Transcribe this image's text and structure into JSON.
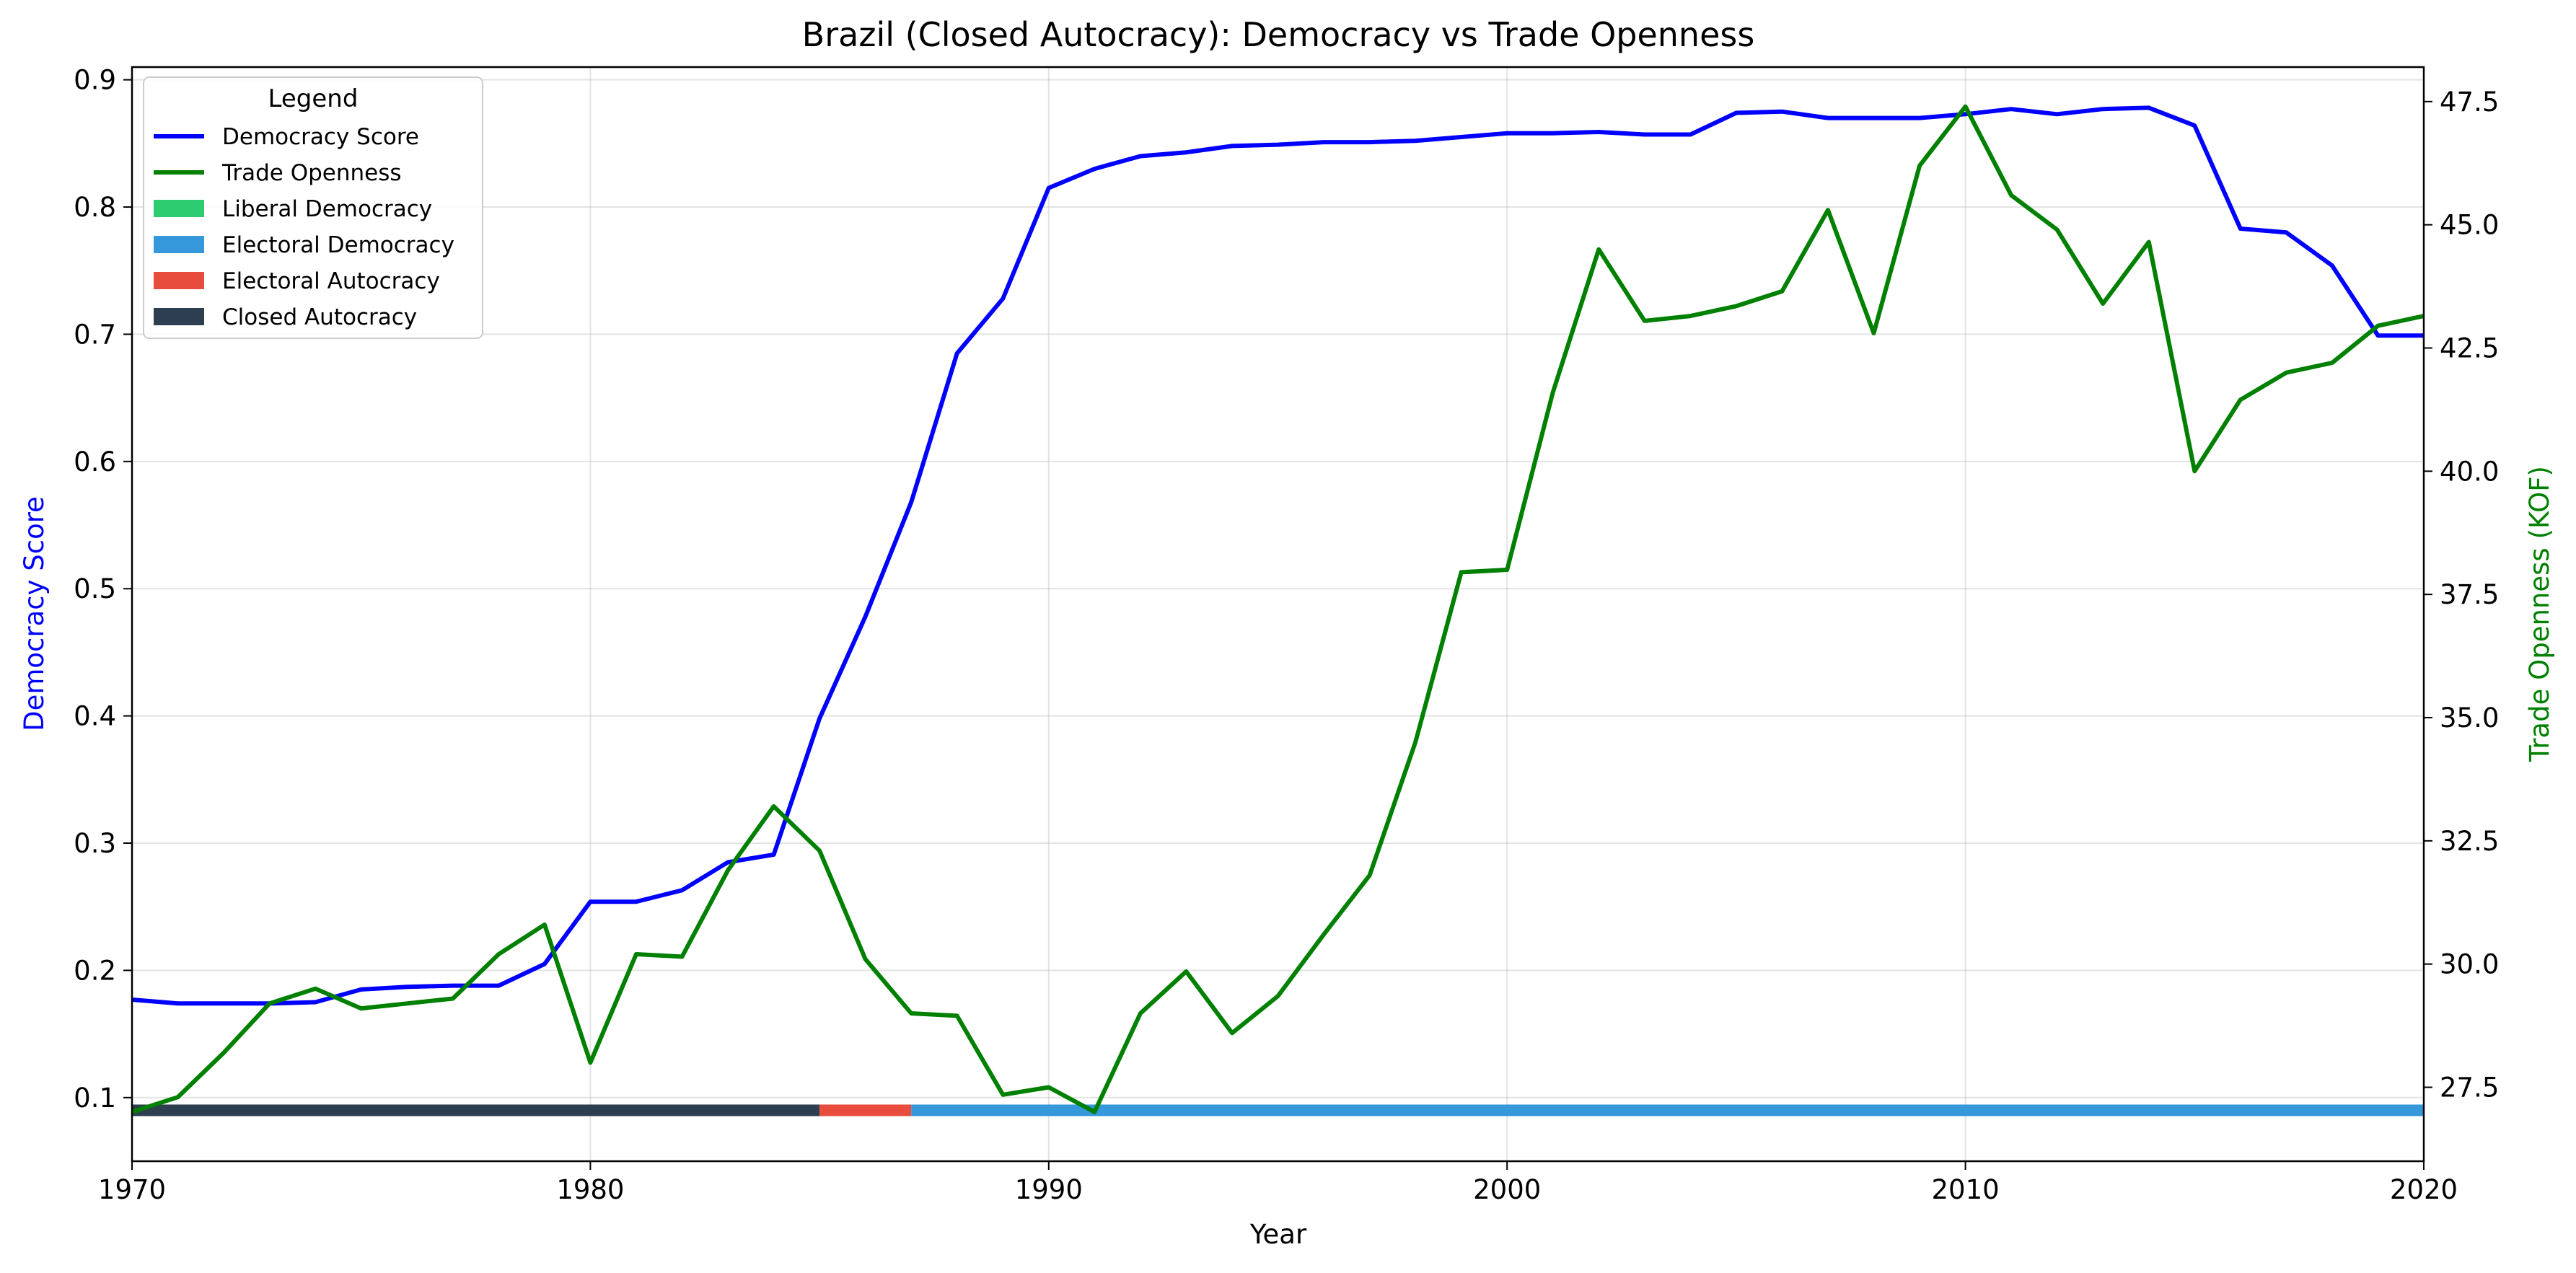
{
  "chart_data": {
    "type": "line",
    "title": "Brazil (Closed Autocracy): Democracy vs Trade Openness",
    "xlabel": "Year",
    "ylabel_left": "Democracy Score",
    "ylabel_right": "Trade Openness (KOF)",
    "xlim": [
      1970,
      2020
    ],
    "ylim_left": [
      0.05,
      0.91
    ],
    "ylim_right": [
      26.0,
      48.2
    ],
    "x_ticks": [
      1970,
      1980,
      1990,
      2000,
      2010,
      2020
    ],
    "y_left_ticks": [
      "0.1",
      "0.2",
      "0.3",
      "0.4",
      "0.5",
      "0.6",
      "0.7",
      "0.8",
      "0.9"
    ],
    "y_right_ticks": [
      "27.5",
      "30.0",
      "32.5",
      "35.0",
      "37.5",
      "40.0",
      "42.5",
      "45.0",
      "47.5"
    ],
    "grid": true,
    "legend": {
      "title": "Legend",
      "placement": "top-left",
      "entries": [
        {
          "label": "Democracy Score",
          "kind": "line",
          "color": "#0000ff"
        },
        {
          "label": "Trade Openness",
          "kind": "line",
          "color": "#008000"
        },
        {
          "label": "Liberal Democracy",
          "kind": "patch",
          "color": "#2ecc71"
        },
        {
          "label": "Electoral Democracy",
          "kind": "patch",
          "color": "#3498db"
        },
        {
          "label": "Electoral Autocracy",
          "kind": "patch",
          "color": "#e74c3c"
        },
        {
          "label": "Closed Autocracy",
          "kind": "patch",
          "color": "#2c3e50"
        }
      ]
    },
    "x": [
      1970,
      1971,
      1972,
      1973,
      1974,
      1975,
      1976,
      1977,
      1978,
      1979,
      1980,
      1981,
      1982,
      1983,
      1984,
      1985,
      1986,
      1987,
      1988,
      1989,
      1990,
      1991,
      1992,
      1993,
      1994,
      1995,
      1996,
      1997,
      1998,
      1999,
      2000,
      2001,
      2002,
      2003,
      2004,
      2005,
      2006,
      2007,
      2008,
      2009,
      2010,
      2011,
      2012,
      2013,
      2014,
      2015,
      2016,
      2017,
      2018,
      2019,
      2020
    ],
    "series": [
      {
        "name": "Democracy Score",
        "axis": "left",
        "color": "#0000ff",
        "values": [
          0.177,
          0.174,
          0.174,
          0.174,
          0.175,
          0.185,
          0.187,
          0.188,
          0.188,
          0.205,
          0.254,
          0.254,
          0.263,
          0.285,
          0.291,
          0.398,
          0.478,
          0.568,
          0.685,
          0.728,
          0.815,
          0.83,
          0.84,
          0.843,
          0.848,
          0.849,
          0.851,
          0.851,
          0.852,
          0.855,
          0.858,
          0.858,
          0.859,
          0.857,
          0.857,
          0.874,
          0.875,
          0.87,
          0.87,
          0.87,
          0.873,
          0.877,
          0.873,
          0.877,
          0.878,
          0.864,
          0.783,
          0.78,
          0.754,
          0.699,
          0.699
        ]
      },
      {
        "name": "Trade Openness",
        "axis": "right",
        "color": "#008000",
        "values": [
          27.0,
          27.3,
          28.2,
          29.2,
          29.5,
          29.1,
          29.2,
          29.3,
          30.2,
          30.8,
          28.0,
          30.2,
          30.15,
          31.9,
          33.2,
          32.3,
          30.1,
          29.0,
          28.95,
          27.35,
          27.5,
          27.0,
          29.0,
          29.85,
          28.6,
          29.35,
          30.6,
          31.8,
          34.5,
          37.95,
          38.0,
          41.6,
          44.5,
          43.05,
          43.15,
          43.35,
          43.65,
          45.3,
          42.8,
          46.2,
          47.4,
          45.6,
          44.9,
          43.4,
          44.65,
          40.0,
          41.45,
          42.0,
          42.2,
          42.95,
          43.15
        ]
      }
    ],
    "regime_bands": [
      {
        "regime": "Closed Autocracy",
        "start": 1970,
        "end": 1985,
        "color": "#2c3e50"
      },
      {
        "regime": "Electoral Autocracy",
        "start": 1985,
        "end": 1987,
        "color": "#e74c3c"
      },
      {
        "regime": "Electoral Democracy",
        "start": 1987,
        "end": 2020,
        "color": "#3498db"
      }
    ]
  }
}
